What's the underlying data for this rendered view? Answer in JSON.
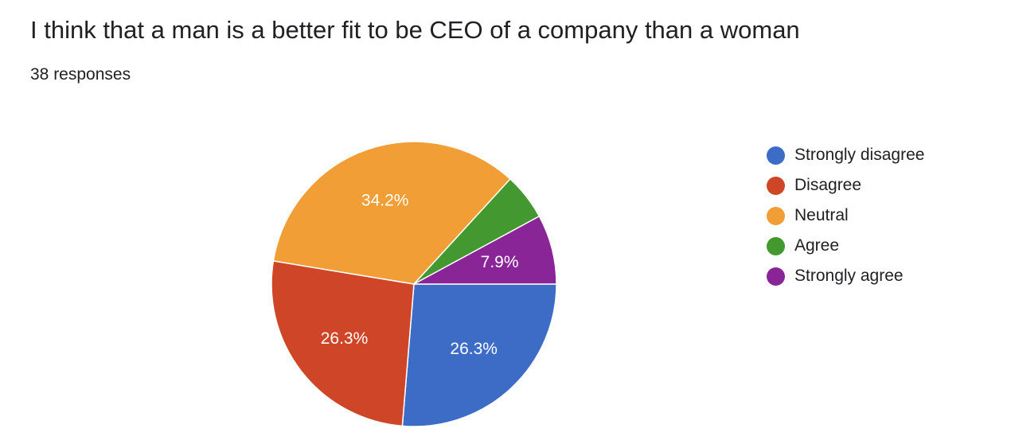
{
  "header": {
    "title": "I think that a man is a better fit to be CEO of a company than a woman",
    "responses": "38 responses"
  },
  "chart_data": {
    "type": "pie",
    "total": 38,
    "legend_position": "right",
    "slices": [
      {
        "name": "Strongly disagree",
        "value": 26.3,
        "label": "26.3%",
        "color": "#3d6cc7"
      },
      {
        "name": "Disagree",
        "value": 26.3,
        "label": "26.3%",
        "color": "#ce4627"
      },
      {
        "name": "Neutral",
        "value": 34.2,
        "label": "34.2%",
        "color": "#f09e35"
      },
      {
        "name": "Agree",
        "value": 5.3,
        "label": "",
        "color": "#43982f"
      },
      {
        "name": "Strongly agree",
        "value": 7.9,
        "label": "7.9%",
        "color": "#8a2597"
      }
    ]
  }
}
